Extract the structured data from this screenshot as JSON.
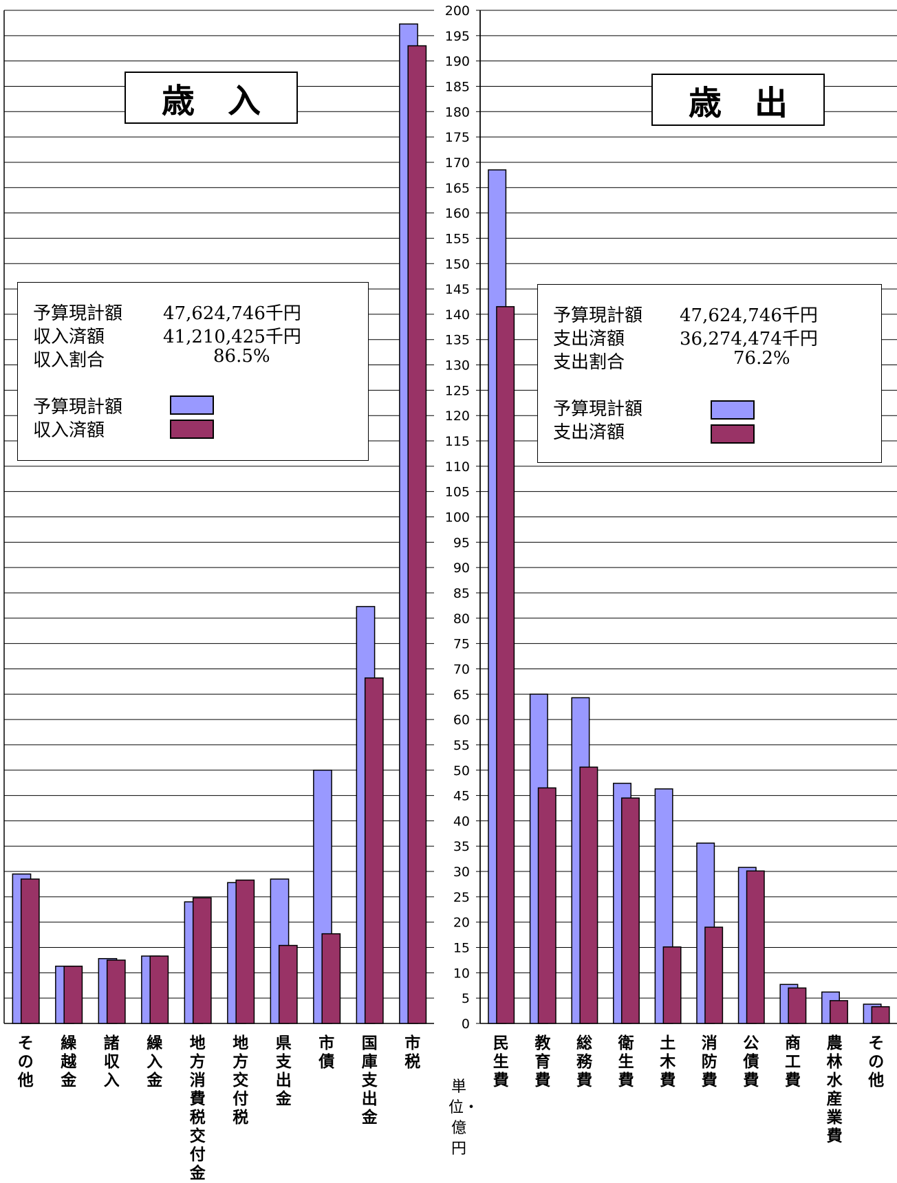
{
  "colors": {
    "budget": "#9999ff",
    "actual": "#993366",
    "grid": "#000000"
  },
  "unit_label": "単位・億円",
  "chart_data": [
    {
      "type": "bar",
      "title": "歳入",
      "categories": [
        "その他",
        "繰越金",
        "諸収入",
        "繰入金",
        "地方消費税交付金",
        "地方交付税",
        "県支出金",
        "市債",
        "国庫支出金",
        "市税"
      ],
      "series": [
        {
          "name": "予算現計額",
          "values": [
            29.5,
            11.3,
            12.8,
            13.3,
            24.0,
            27.8,
            28.5,
            50.0,
            82.3,
            197.3
          ]
        },
        {
          "name": "収入済額",
          "values": [
            28.5,
            11.3,
            12.5,
            13.3,
            24.8,
            28.3,
            15.4,
            17.7,
            68.2,
            193.0
          ]
        }
      ],
      "ylim": [
        0,
        200
      ],
      "ytick_step": 5,
      "grid": true,
      "summary": [
        {
          "label": "予算現計額",
          "value": "47,624,746千円"
        },
        {
          "label": "収入済額",
          "value": "41,210,425千円"
        },
        {
          "label": "収入割合",
          "value": "86.5%"
        }
      ],
      "legend": [
        "予算現計額",
        "収入済額"
      ]
    },
    {
      "type": "bar",
      "title": "歳出",
      "categories": [
        "民生費",
        "教育費",
        "総務費",
        "衛生費",
        "土木費",
        "消防費",
        "公債費",
        "商工費",
        "農林水産業費",
        "その他"
      ],
      "series": [
        {
          "name": "予算現計額",
          "values": [
            168.5,
            65.0,
            64.3,
            47.4,
            46.3,
            35.6,
            30.8,
            7.7,
            6.2,
            3.8
          ]
        },
        {
          "name": "支出済額",
          "values": [
            141.5,
            46.5,
            50.6,
            44.5,
            15.1,
            19.0,
            30.1,
            7.0,
            4.5,
            3.3
          ]
        }
      ],
      "ylim": [
        0,
        200
      ],
      "ytick_step": 5,
      "ytick_labels_shown": true,
      "grid": true,
      "summary": [
        {
          "label": "予算現計額",
          "value": "47,624,746千円"
        },
        {
          "label": "支出済額",
          "value": "36,274,474千円"
        },
        {
          "label": "支出割合",
          "value": "76.2%"
        }
      ],
      "legend": [
        "予算現計額",
        "支出済額"
      ]
    }
  ]
}
